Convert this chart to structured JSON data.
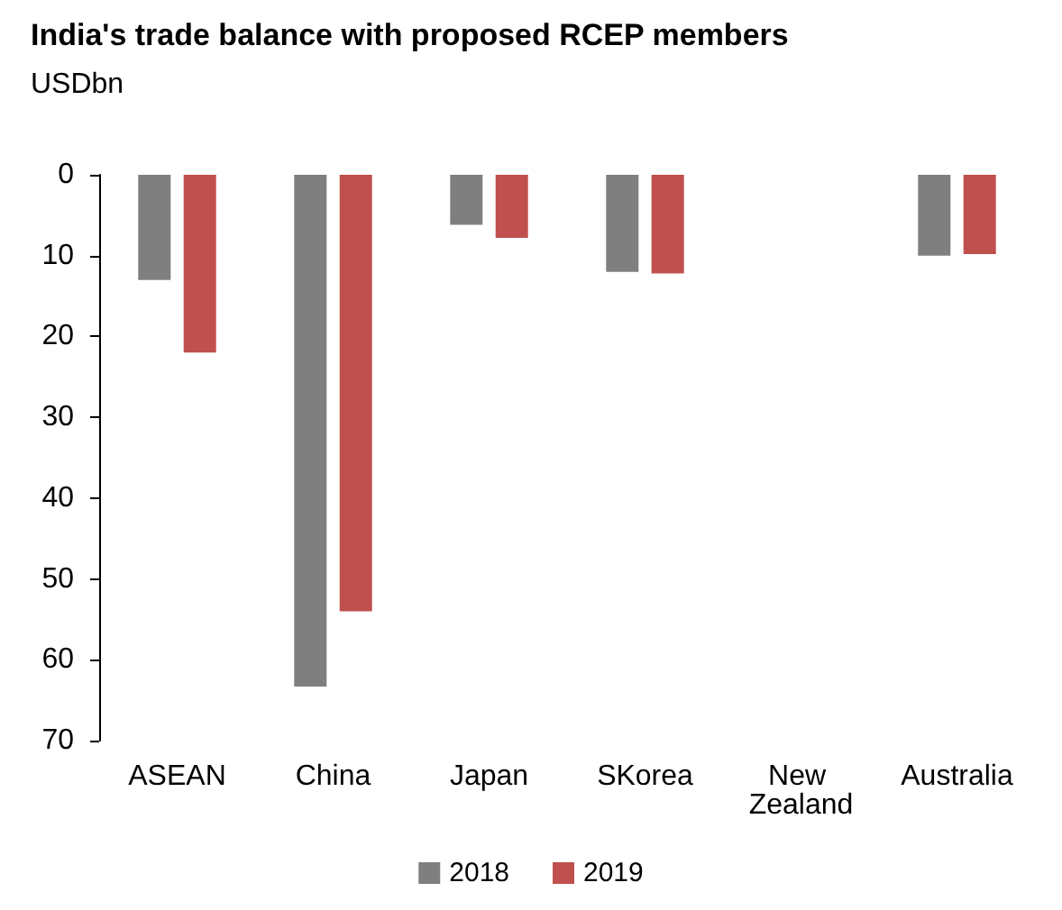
{
  "chart_data": {
    "type": "bar",
    "title": "India's trade balance with proposed RCEP members",
    "ylabel": "USDbn",
    "categories": [
      "ASEAN",
      "China",
      "Japan",
      "SKorea",
      "New Zealand",
      "Australia"
    ],
    "series": [
      {
        "name": "2018",
        "color": "#7f7f7f",
        "values": [
          13,
          63.3,
          6.2,
          12,
          0,
          10
        ]
      },
      {
        "name": "2019",
        "color": "#c0504d",
        "values": [
          22,
          54,
          7.8,
          12.2,
          0,
          9.8
        ]
      }
    ],
    "ylim": [
      70,
      0
    ],
    "yticks": [
      0,
      10,
      20,
      30,
      40,
      50,
      60,
      70
    ],
    "grid": false,
    "legend": "bottom"
  }
}
